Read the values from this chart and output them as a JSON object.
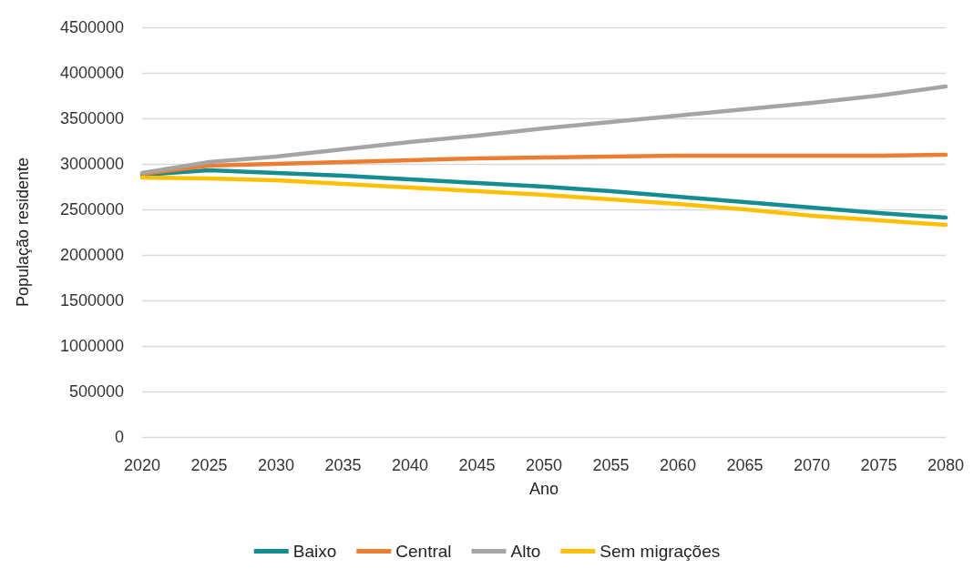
{
  "chart_data": {
    "type": "line",
    "xlabel": "Ano",
    "ylabel": "População residente",
    "categories": [
      "2020",
      "2025",
      "2030",
      "2035",
      "2040",
      "2045",
      "2050",
      "2055",
      "2060",
      "2065",
      "2070",
      "2075",
      "2080"
    ],
    "series": [
      {
        "name": "Baixo",
        "color": "#138d90",
        "values": [
          2880000,
          2930000,
          2900000,
          2870000,
          2830000,
          2790000,
          2750000,
          2700000,
          2640000,
          2580000,
          2520000,
          2460000,
          2410000
        ]
      },
      {
        "name": "Central",
        "color": "#ed7d31",
        "values": [
          2890000,
          2980000,
          3000000,
          3020000,
          3040000,
          3060000,
          3070000,
          3080000,
          3090000,
          3090000,
          3090000,
          3090000,
          3100000
        ]
      },
      {
        "name": "Alto",
        "color": "#a5a5a5",
        "values": [
          2900000,
          3020000,
          3080000,
          3160000,
          3240000,
          3310000,
          3390000,
          3460000,
          3530000,
          3600000,
          3670000,
          3750000,
          3850000
        ]
      },
      {
        "name": "Sem migrações",
        "color": "#ffc000",
        "values": [
          2850000,
          2840000,
          2820000,
          2780000,
          2740000,
          2700000,
          2660000,
          2610000,
          2560000,
          2500000,
          2430000,
          2380000,
          2330000
        ]
      }
    ],
    "ylim": [
      0,
      4500000
    ],
    "yticks": [
      0,
      500000,
      1000000,
      1500000,
      2000000,
      2500000,
      3000000,
      3500000,
      4000000,
      4500000
    ],
    "grid": "y",
    "legend": "bottom",
    "marker": "none",
    "line_style": "solid"
  }
}
